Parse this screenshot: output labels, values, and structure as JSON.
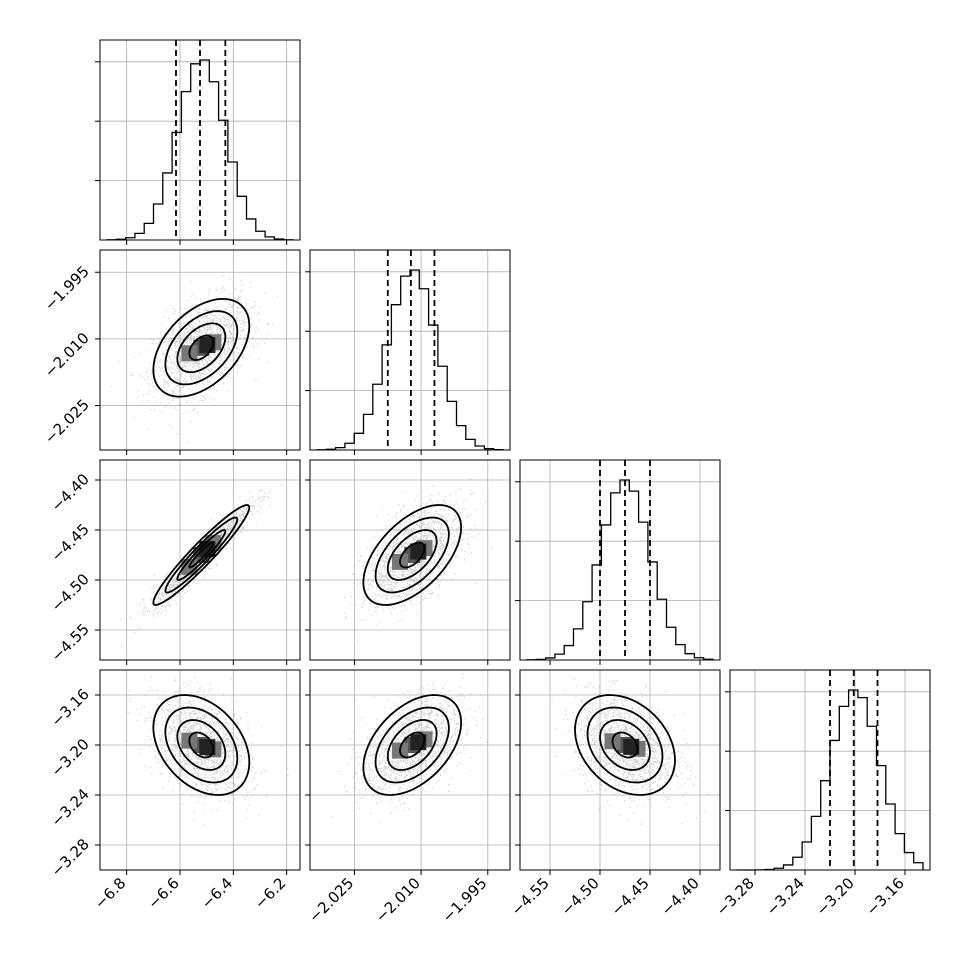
{
  "chart_data": {
    "type": "corner",
    "parameters": [
      {
        "range": [
          -6.9,
          -6.15
        ],
        "ticks": [
          -6.8,
          -6.6,
          -6.4,
          -6.2
        ],
        "tick_labels": [
          "−6.8",
          "−6.6",
          "−6.4",
          "−6.2"
        ],
        "mean": -6.52,
        "sd": 0.09,
        "quantiles": [
          -6.615,
          -6.525,
          -6.43
        ]
      },
      {
        "range": [
          -2.035,
          -1.99
        ],
        "ticks": [
          -2.025,
          -2.01,
          -1.995
        ],
        "tick_labels": [
          "−2.025",
          "−2.010",
          "−1.995"
        ],
        "mean": -2.012,
        "sd": 0.0055,
        "quantiles": [
          -2.0175,
          -2.0123,
          -2.007
        ]
      },
      {
        "range": [
          -4.58,
          -4.38
        ],
        "ticks": [
          -4.55,
          -4.5,
          -4.45,
          -4.4
        ],
        "tick_labels": [
          "−4.55",
          "−4.50",
          "−4.45",
          "−4.40"
        ],
        "mean": -4.475,
        "sd": 0.025,
        "quantiles": [
          -4.5,
          -4.475,
          -4.45
        ]
      },
      {
        "range": [
          -3.3,
          -3.14
        ],
        "ticks": [
          -3.28,
          -3.24,
          -3.2,
          -3.16
        ],
        "tick_labels": [
          "−3.28",
          "−3.24",
          "−3.20",
          "−3.16"
        ],
        "mean": -3.2,
        "sd": 0.02,
        "quantiles": [
          -3.22,
          -3.201,
          -3.182
        ]
      }
    ],
    "correlations": [
      [
        1.0,
        0.45,
        0.95,
        -0.35
      ],
      [
        0.45,
        1.0,
        0.55,
        0.45
      ],
      [
        0.95,
        0.55,
        1.0,
        -0.3
      ],
      [
        -0.35,
        0.45,
        -0.3,
        1.0
      ]
    ],
    "histogram_bins": 20,
    "grid": true
  }
}
